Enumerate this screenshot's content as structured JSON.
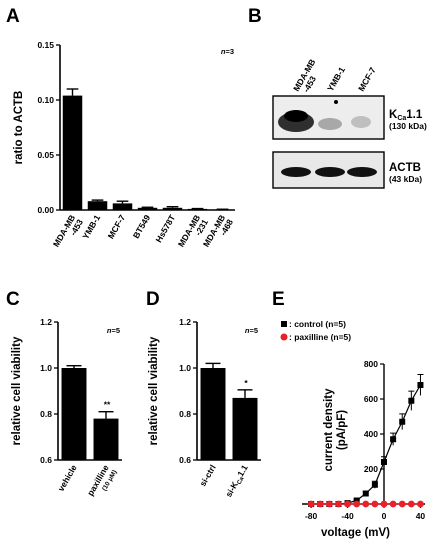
{
  "panels": {
    "A": "A",
    "B": "B",
    "C": "C",
    "D": "D",
    "E": "E"
  },
  "chart_data": [
    {
      "panel": "A",
      "type": "bar",
      "ylabel": "ratio to ACTB",
      "annotation": "n=3",
      "categories": [
        "MDA-MB-453",
        "YMB-1",
        "MCF-7",
        "BT549",
        "Hs578T",
        "MDA-MB-231",
        "MDA-MB-468"
      ],
      "category_lines": [
        [
          "MDA-MB",
          "-453"
        ],
        [
          "YMB-1"
        ],
        [
          "MCF-7"
        ],
        [
          "BT549"
        ],
        [
          "Hs578T"
        ],
        [
          "MDA-MB",
          "-231"
        ],
        [
          "MDA-MB",
          "-468"
        ]
      ],
      "values": [
        0.104,
        0.008,
        0.006,
        0.002,
        0.002,
        0.001,
        0.0005
      ],
      "errors": [
        0.006,
        0.001,
        0.002,
        0.0005,
        0.001,
        0.0003,
        0.0002
      ],
      "ylim": [
        0,
        0.15
      ],
      "yticks": [
        "0.00",
        "0.05",
        "0.10",
        "0.15"
      ],
      "ytick_values": [
        0,
        0.05,
        0.1,
        0.15
      ]
    },
    {
      "panel": "C",
      "type": "bar",
      "ylabel": "relative cell viability",
      "annotation": "n=5",
      "categories": [
        "vehicle",
        "paxilline (10 μM)"
      ],
      "category_lines": [
        [
          "vehicle"
        ],
        [
          "paxilline",
          "(10 μM)"
        ]
      ],
      "values": [
        1.0,
        0.78
      ],
      "errors": [
        0.01,
        0.03
      ],
      "significance": [
        "",
        "**"
      ],
      "ylim": [
        0.6,
        1.2
      ],
      "yticks": [
        "0.6",
        "0.8",
        "1.0",
        "1.2"
      ],
      "ytick_values": [
        0.6,
        0.8,
        1.0,
        1.2
      ]
    },
    {
      "panel": "D",
      "type": "bar",
      "ylabel": "relative cell viability",
      "annotation": "n=5",
      "categories": [
        "si-ctrl",
        "si-KCa1.1"
      ],
      "category_lines": [
        [
          "si-ctrl"
        ],
        [
          "si-K",
          "Ca",
          "1.1"
        ]
      ],
      "values": [
        1.0,
        0.87
      ],
      "errors": [
        0.02,
        0.035
      ],
      "significance": [
        "",
        "*"
      ],
      "ylim": [
        0.6,
        1.2
      ],
      "yticks": [
        "0.6",
        "0.8",
        "1.0",
        "1.2"
      ],
      "ytick_values": [
        0.6,
        0.8,
        1.0,
        1.2
      ]
    },
    {
      "panel": "E",
      "type": "line",
      "xlabel": "voltage (mV)",
      "ylabel_lines": [
        "current density",
        "(pA/pF)"
      ],
      "xlim": [
        -90,
        45
      ],
      "ylim": [
        0,
        800
      ],
      "xticks": [
        "-80",
        "-40",
        "0",
        "40"
      ],
      "xtick_values": [
        -80,
        -40,
        0,
        40
      ],
      "yticks": [
        "0",
        "200",
        "400",
        "600",
        "800"
      ],
      "ytick_values": [
        0,
        200,
        400,
        600,
        800
      ],
      "series": [
        {
          "name": ": control (n=5)",
          "color": "#000000",
          "marker": "square",
          "x": [
            -80,
            -70,
            -60,
            -50,
            -40,
            -30,
            -20,
            -10,
            0,
            10,
            20,
            30,
            40
          ],
          "y": [
            0,
            0,
            0,
            0,
            5,
            20,
            60,
            110,
            240,
            370,
            470,
            590,
            680
          ],
          "err": [
            0,
            0,
            0,
            0,
            0,
            5,
            10,
            20,
            30,
            35,
            45,
            55,
            60
          ]
        },
        {
          "name": ": paxilline (n=5)",
          "color": "#e8202a",
          "marker": "circle",
          "x": [
            -80,
            -70,
            -60,
            -50,
            -40,
            -30,
            -20,
            -10,
            0,
            10,
            20,
            30,
            40
          ],
          "y": [
            0,
            0,
            0,
            0,
            0,
            0,
            0,
            0,
            0,
            0,
            0,
            0,
            0
          ],
          "err": [
            0,
            0,
            0,
            0,
            0,
            0,
            0,
            0,
            0,
            0,
            0,
            0,
            0
          ]
        }
      ]
    }
  ],
  "blot": {
    "lanes": [
      [
        "MDA-MB",
        "-453"
      ],
      [
        "YMB-1"
      ],
      [
        "MCF-7"
      ]
    ],
    "rows": [
      {
        "label_main": "K",
        "label_sub": "Ca",
        "label_rest": "1.1",
        "kda": "(130 kDa)"
      },
      {
        "label_main": "ACTB",
        "label_sub": "",
        "label_rest": "",
        "kda": "(43 kDa)"
      }
    ]
  }
}
